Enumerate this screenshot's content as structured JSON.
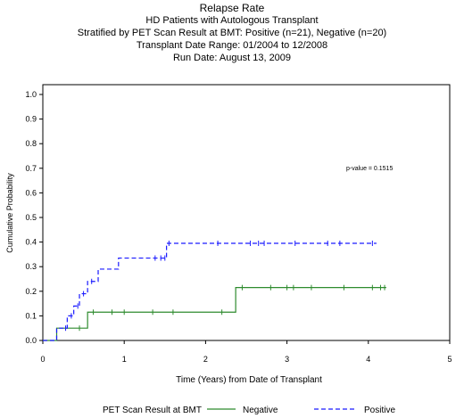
{
  "header": {
    "title": "Relapse Rate",
    "line2": "HD Patients with Autologous Transplant",
    "line3": "Stratified by  PET Scan Result at BMT: Positive (n=21), Negative (n=20)",
    "line4": "Transplant Date Range: 01/2004 to 12/2008",
    "line5": "Run Date: August 13, 2009"
  },
  "chart_data": {
    "type": "line",
    "title": "Relapse Rate",
    "xlabel": "Time (Years) from Date of Transplant",
    "ylabel": "Cumulative Probability",
    "xlim": [
      0,
      5
    ],
    "ylim": [
      0,
      1.0
    ],
    "x_ticks": [
      "0",
      "1",
      "2",
      "3",
      "4",
      "5"
    ],
    "y_ticks": [
      "0.0",
      "0.1",
      "0.2",
      "0.3",
      "0.4",
      "0.5",
      "0.6",
      "0.7",
      "0.8",
      "0.9",
      "1.0"
    ],
    "grid": false,
    "annotation": "p-value = 0.1515",
    "legend_title": "PET Scan Result at BMT",
    "legend_position": "bottom",
    "colors": {
      "Negative": "#2e8b2e",
      "Positive": "#1a1aff"
    },
    "series": [
      {
        "name": "Negative",
        "line_style": "solid",
        "steps": [
          [
            0,
            0.0
          ],
          [
            0.17,
            0.05
          ],
          [
            0.55,
            0.115
          ],
          [
            2.37,
            0.215
          ],
          [
            4.22,
            0.215
          ]
        ],
        "censor_marks": [
          [
            0.45,
            0.05
          ],
          [
            0.62,
            0.115
          ],
          [
            0.85,
            0.115
          ],
          [
            1.0,
            0.115
          ],
          [
            1.35,
            0.115
          ],
          [
            1.6,
            0.115
          ],
          [
            2.2,
            0.115
          ],
          [
            2.45,
            0.215
          ],
          [
            2.8,
            0.215
          ],
          [
            3.0,
            0.215
          ],
          [
            3.08,
            0.215
          ],
          [
            3.3,
            0.215
          ],
          [
            3.7,
            0.215
          ],
          [
            4.05,
            0.215
          ],
          [
            4.15,
            0.215
          ],
          [
            4.2,
            0.215
          ]
        ]
      },
      {
        "name": "Positive",
        "line_style": "dashed",
        "steps": [
          [
            0,
            0.0
          ],
          [
            0.17,
            0.05
          ],
          [
            0.3,
            0.1
          ],
          [
            0.38,
            0.14
          ],
          [
            0.45,
            0.19
          ],
          [
            0.55,
            0.24
          ],
          [
            0.68,
            0.29
          ],
          [
            0.93,
            0.335
          ],
          [
            1.52,
            0.395
          ],
          [
            4.1,
            0.395
          ]
        ],
        "censor_marks": [
          [
            0.28,
            0.05
          ],
          [
            0.35,
            0.1
          ],
          [
            0.43,
            0.14
          ],
          [
            0.5,
            0.19
          ],
          [
            0.6,
            0.24
          ],
          [
            1.38,
            0.335
          ],
          [
            1.45,
            0.335
          ],
          [
            1.5,
            0.335
          ],
          [
            1.55,
            0.395
          ],
          [
            2.15,
            0.395
          ],
          [
            2.55,
            0.395
          ],
          [
            2.65,
            0.395
          ],
          [
            2.72,
            0.395
          ],
          [
            3.1,
            0.395
          ],
          [
            3.5,
            0.395
          ],
          [
            3.65,
            0.395
          ],
          [
            4.05,
            0.395
          ]
        ]
      }
    ]
  }
}
